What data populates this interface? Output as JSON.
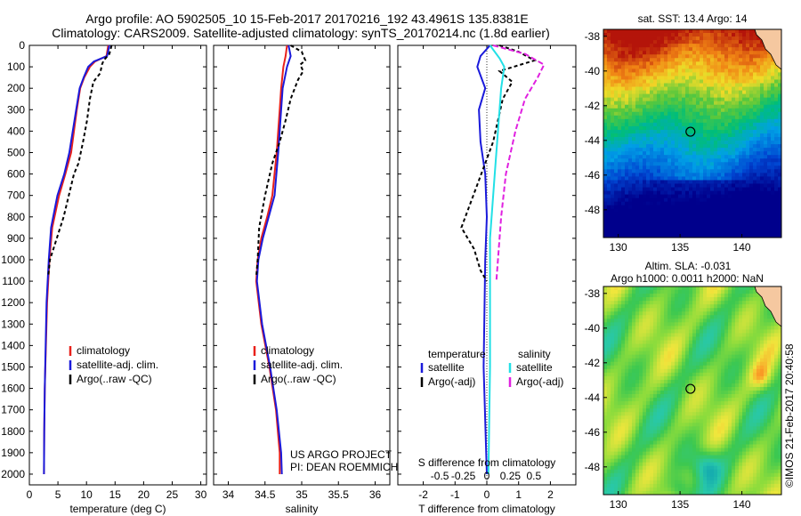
{
  "header": {
    "line1": "Argo profile: AO 5902505_10 15-Feb-2017 20170216_192 43.4961S 135.8381E",
    "line2": "Climatology: CARS2009. Satellite-adjusted climatology: synTS_20170214.nc (1.8d earlier)"
  },
  "side_text": "©IMOS 21-Feb-2017 20:40:58",
  "colors": {
    "climatology": "#e8211b",
    "satellite": "#1a1adb",
    "argo": "#000000",
    "sal_satellite": "#22e0e6",
    "sal_argo": "#e020e0"
  },
  "chart_data": [
    {
      "type": "line",
      "xlabel": "temperature (deg C)",
      "xlim": [
        0,
        31
      ],
      "ylim": [
        0,
        2050
      ],
      "x_ticks": [
        0,
        5,
        10,
        15,
        20,
        25,
        30
      ],
      "y_ticks": [
        0,
        100,
        200,
        300,
        400,
        500,
        600,
        700,
        800,
        900,
        1000,
        1100,
        1200,
        1300,
        1400,
        1500,
        1600,
        1700,
        1800,
        1900,
        2000
      ],
      "legend": [
        "climatology",
        "satellite-adj. clim.",
        "Argo(..raw -QC)"
      ],
      "series": [
        {
          "name": "climatology",
          "color": "#e8211b",
          "dash": "",
          "x": [
            13.8,
            13.5,
            11.5,
            10.6,
            9.6,
            8.9,
            8.3,
            7.3,
            6.3,
            5.2,
            4.0,
            3.5,
            3.1,
            2.9,
            2.7,
            2.6,
            2.55
          ],
          "y": [
            0,
            50,
            75,
            100,
            150,
            200,
            300,
            500,
            600,
            700,
            850,
            1000,
            1200,
            1400,
            1600,
            1800,
            2000
          ]
        },
        {
          "name": "satellite-adj. clim.",
          "color": "#1a1adb",
          "dash": "",
          "x": [
            14.0,
            13.6,
            11.3,
            10.3,
            9.5,
            8.8,
            8.2,
            7.0,
            6.1,
            4.9,
            3.8,
            3.4,
            3.0,
            2.85,
            2.7,
            2.6,
            2.55
          ],
          "y": [
            0,
            50,
            75,
            100,
            150,
            200,
            300,
            500,
            600,
            700,
            850,
            1000,
            1200,
            1400,
            1600,
            1800,
            2000
          ]
        },
        {
          "name": "Argo(..raw -QC)",
          "color": "#000000",
          "dash": "4,3",
          "x": [
            14.4,
            14.0,
            13.0,
            12.7,
            12.4,
            11.2,
            10.6,
            10.1,
            9.4,
            8.6,
            7.8,
            6.9,
            6.0,
            4.8,
            3.6,
            3.3
          ],
          "y": [
            0,
            40,
            70,
            90,
            130,
            170,
            250,
            350,
            450,
            550,
            600,
            700,
            800,
            900,
            1000,
            1080
          ]
        }
      ]
    },
    {
      "type": "line",
      "xlabel": "salinity",
      "xlim": [
        33.8,
        36.2
      ],
      "ylim": [
        0,
        2050
      ],
      "x_ticks": [
        34,
        34.5,
        35,
        35.5,
        36
      ],
      "legend": [
        "climatology",
        "satellite-adj. clim.",
        "Argo(..raw -QC)"
      ],
      "annotation": [
        "US ARGO PROJECT",
        "PI: DEAN ROEMMICH"
      ],
      "series": [
        {
          "name": "climatology",
          "color": "#e8211b",
          "dash": "",
          "x": [
            34.8,
            34.78,
            34.75,
            34.72,
            34.7,
            34.66,
            34.6,
            34.53,
            34.45,
            34.4,
            34.38,
            34.45,
            34.56,
            34.65,
            34.7,
            34.7
          ],
          "y": [
            0,
            50,
            100,
            200,
            300,
            500,
            700,
            800,
            900,
            1000,
            1100,
            1300,
            1500,
            1700,
            1900,
            2000
          ]
        },
        {
          "name": "satellite-adj. clim.",
          "color": "#1a1adb",
          "dash": "",
          "x": [
            34.82,
            34.85,
            34.8,
            34.74,
            34.72,
            34.68,
            34.63,
            34.55,
            34.47,
            34.41,
            34.39,
            34.46,
            34.57,
            34.66,
            34.72,
            34.73
          ],
          "y": [
            0,
            50,
            100,
            200,
            300,
            500,
            700,
            800,
            900,
            1000,
            1100,
            1300,
            1500,
            1700,
            1900,
            2000
          ]
        },
        {
          "name": "Argo(..raw -QC)",
          "color": "#000000",
          "dash": "4,3",
          "x": [
            34.85,
            35.0,
            35.05,
            34.98,
            35.02,
            34.95,
            34.85,
            34.78,
            34.7,
            34.6,
            34.5,
            34.42,
            34.4,
            34.38
          ],
          "y": [
            0,
            30,
            70,
            90,
            120,
            160,
            250,
            350,
            450,
            550,
            700,
            850,
            1000,
            1080
          ]
        }
      ]
    },
    {
      "type": "line",
      "xlabel": "T difference from climatology",
      "secondary_xlabel": "S difference from climatology",
      "xlim": [
        -2.8,
        2.8
      ],
      "ylim": [
        0,
        2050
      ],
      "x_ticks": [
        -2,
        -1,
        0,
        1,
        2
      ],
      "secondary_ticks": [
        "-0.5",
        "-0.25",
        "0",
        "0.25",
        "0.5"
      ],
      "legend_titles": [
        "temperature",
        "salinity"
      ],
      "legend": [
        "satellite",
        "Argo(-adj)",
        "satellite",
        "Argo(-adj)"
      ],
      "series": [
        {
          "name": "temperature satellite",
          "color": "#1a1adb",
          "dash": "",
          "x": [
            0.1,
            -0.2,
            -0.3,
            -0.05,
            -0.25,
            -0.2,
            -0.05,
            0,
            -0.05,
            -0.1,
            0
          ],
          "y": [
            0,
            50,
            100,
            200,
            300,
            450,
            600,
            800,
            1000,
            1500,
            2000
          ]
        },
        {
          "name": "temperature Argo(-adj)",
          "color": "#000000",
          "dash": "4,3",
          "x": [
            0.4,
            1.0,
            1.5,
            0.4,
            0.8,
            0.5,
            0.2,
            -0.3,
            -0.8,
            -0.4,
            -0.2,
            0
          ],
          "y": [
            0,
            30,
            70,
            120,
            170,
            250,
            450,
            650,
            850,
            950,
            1050,
            1100
          ]
        },
        {
          "name": "salinity satellite",
          "color": "#22e0e6",
          "dash": "",
          "x": [
            0.1,
            0.4,
            0.55,
            0.45,
            0.35,
            0.25,
            0.1,
            0.1,
            0.05
          ],
          "y": [
            0,
            60,
            100,
            200,
            400,
            600,
            900,
            1500,
            2000
          ]
        },
        {
          "name": "salinity Argo(-adj)",
          "color": "#e020e0",
          "dash": "6,3",
          "x": [
            0.2,
            1.2,
            1.8,
            1.6,
            1.2,
            0.9,
            0.6,
            0.45,
            0.35,
            0.3
          ],
          "y": [
            0,
            40,
            90,
            150,
            250,
            400,
            600,
            800,
            1000,
            1100
          ]
        }
      ]
    },
    {
      "type": "heatmap",
      "title": "sat. SST: 13.4  Argo: 14",
      "x_ticks": [
        130,
        135,
        140
      ],
      "y_ticks": [
        -38,
        -40,
        -42,
        -44,
        -46,
        -48
      ]
    },
    {
      "type": "heatmap",
      "title": "Altim. SLA: -0.031",
      "subtitle": "Argo h1000: 0.0011 h2000: NaN",
      "x_ticks": [
        130,
        135,
        140
      ],
      "y_ticks": [
        -38,
        -40,
        -42,
        -44,
        -46,
        -48
      ]
    }
  ]
}
